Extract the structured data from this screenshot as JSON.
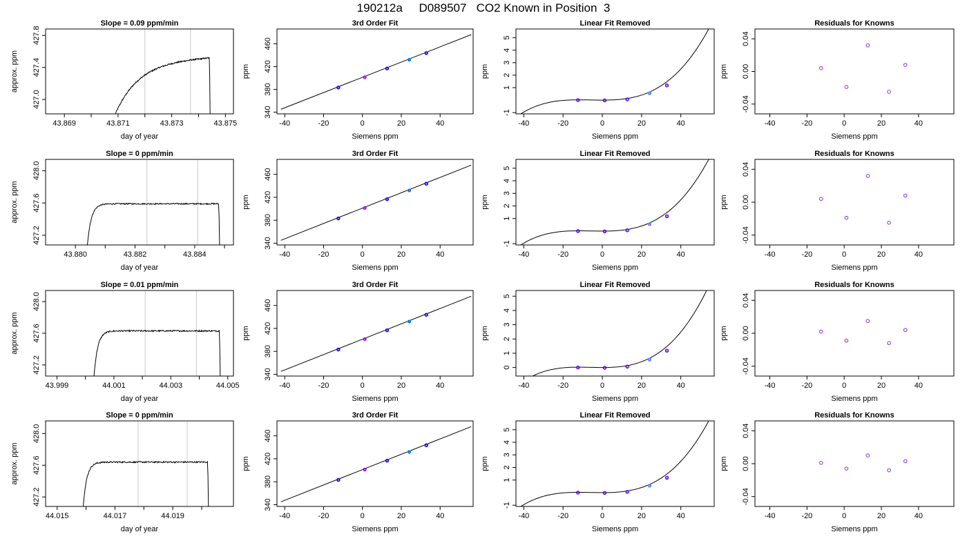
{
  "page": {
    "title": "190212a     D089507   CO2 Known in Position  3"
  },
  "style": {
    "trace_color": "#000000",
    "vline_color": "#c8c8c8",
    "point_color_a": "#0000ff",
    "point_color_b": "#ff00ff",
    "point_color_c": "#00bfff",
    "residual_color": "#8a2be2",
    "axis_color": "#000000"
  },
  "chart_data": [
    {
      "panel": "trace",
      "type": "line",
      "title": "Slope =  0.09  ppm/min",
      "xlabel": "day of year",
      "ylabel": "approx. ppm",
      "xlim": [
        43.8683,
        43.8753
      ],
      "ylim": [
        426.82,
        427.88
      ],
      "xticks": [
        "43.869",
        "43.871",
        "43.873",
        "43.875"
      ],
      "xticks_v": [
        43.869,
        43.871,
        43.873,
        43.875
      ],
      "xticks_minor": [
        43.87,
        43.872,
        43.874
      ],
      "yticks": [
        "427.0",
        "427.4",
        "427.8"
      ],
      "yticks_v": [
        427.0,
        427.4,
        427.8
      ],
      "vlines": [
        43.872,
        43.8737
      ],
      "start": 43.8709,
      "end": 43.8744,
      "base": 426.82,
      "plateau": 427.47,
      "rise_k": 0.55,
      "rise_shape": "slow",
      "plateau_slope": 0.06,
      "noise": 0.008
    },
    {
      "panel": "fit",
      "type": "line",
      "title": "3rd Order Fit",
      "xlabel": "Siemens ppm",
      "ylabel": "ppm",
      "xlim": [
        -44,
        57
      ],
      "ylim": [
        337,
        486
      ],
      "xticks": [
        "-40",
        "-20",
        "0",
        "20",
        "40"
      ],
      "xticks_v": [
        -40,
        -20,
        0,
        20,
        40
      ],
      "yticks": [
        "340",
        "380",
        "420",
        "460"
      ],
      "yticks_v": [
        340,
        380,
        420,
        460
      ],
      "line": [
        [
          -42,
          345
        ],
        [
          56,
          476
        ]
      ],
      "points": [
        [
          -12.4,
          383.2
        ],
        [
          1.2,
          401.3
        ],
        [
          12.7,
          416.7
        ],
        [
          24.1,
          431.9
        ],
        [
          32.9,
          443.7
        ]
      ]
    },
    {
      "panel": "resid_fit",
      "type": "line",
      "title": "Linear Fit Removed",
      "xlabel": "Siemens ppm",
      "ylabel": "ppm",
      "xlim": [
        -44,
        57
      ],
      "ylim": [
        -1.1,
        5.7
      ],
      "xticks": [
        "-40",
        "-20",
        "0",
        "20",
        "40"
      ],
      "xticks_v": [
        -40,
        -20,
        0,
        20,
        40
      ],
      "yticks": [
        "-1",
        "1",
        "2",
        "3",
        "4",
        "5"
      ],
      "yticks_v": [
        -1,
        1,
        2,
        3,
        4,
        5
      ],
      "points": [
        [
          -12.4,
          0.0
        ],
        [
          1.2,
          -0.02
        ],
        [
          12.7,
          0.06
        ],
        [
          24.1,
          0.55
        ],
        [
          32.9,
          1.18
        ]
      ]
    },
    {
      "panel": "knowns",
      "type": "scatter",
      "title": "Residuals for Knowns",
      "xlabel": "Siemens ppm",
      "ylabel": "ppm",
      "xlim": [
        -48,
        59
      ],
      "ylim": [
        -0.052,
        0.052
      ],
      "xticks": [
        "-40",
        "-20",
        "0",
        "20",
        "40"
      ],
      "xticks_v": [
        -40,
        -20,
        0,
        20,
        40
      ],
      "yticks": [
        "-0.04",
        "0.00",
        "0.04"
      ],
      "yticks_v": [
        -0.04,
        0.0,
        0.04
      ],
      "points": [
        [
          -12.4,
          0.004
        ],
        [
          1.2,
          -0.019
        ],
        [
          12.7,
          0.032
        ],
        [
          24.1,
          -0.025
        ],
        [
          32.9,
          0.008
        ]
      ]
    },
    {
      "panel": "trace",
      "type": "line",
      "title": "Slope =  0  ppm/min",
      "xlabel": "day of year",
      "ylabel": "approx. ppm",
      "xlim": [
        43.879,
        43.8853
      ],
      "ylim": [
        427.08,
        428.14
      ],
      "xticks": [
        "43.880",
        "43.882",
        "43.884"
      ],
      "xticks_v": [
        43.88,
        43.882,
        43.884
      ],
      "xticks_minor": [
        43.881,
        43.883,
        43.885
      ],
      "yticks": [
        "427.2",
        "427.6",
        "428.0"
      ],
      "yticks_v": [
        427.2,
        427.6,
        428.0
      ],
      "vlines": [
        43.8824,
        43.8841
      ],
      "start": 43.8804,
      "end": 43.8848,
      "base": 427.08,
      "plateau": 427.59,
      "rise_k": 0.18,
      "rise_shape": "fast",
      "plateau_slope": 0.0,
      "noise": 0.008
    },
    {
      "panel": "fit",
      "type": "line",
      "title": "3rd Order Fit",
      "xlabel": "Siemens ppm",
      "ylabel": "ppm",
      "xlim": [
        -44,
        57
      ],
      "ylim": [
        337,
        486
      ],
      "xticks": [
        "-40",
        "-20",
        "0",
        "20",
        "40"
      ],
      "xticks_v": [
        -40,
        -20,
        0,
        20,
        40
      ],
      "yticks": [
        "340",
        "380",
        "420",
        "460"
      ],
      "yticks_v": [
        340,
        380,
        420,
        460
      ],
      "line": [
        [
          -42,
          345
        ],
        [
          56,
          476
        ]
      ],
      "points": [
        [
          -12.4,
          383.2
        ],
        [
          1.2,
          401.3
        ],
        [
          12.7,
          416.7
        ],
        [
          24.1,
          431.9
        ],
        [
          32.9,
          443.7
        ]
      ]
    },
    {
      "panel": "resid_fit",
      "type": "line",
      "title": "Linear Fit Removed",
      "xlabel": "Siemens ppm",
      "ylabel": "ppm",
      "xlim": [
        -44,
        57
      ],
      "ylim": [
        -1.1,
        5.7
      ],
      "xticks": [
        "-40",
        "-20",
        "0",
        "20",
        "40"
      ],
      "xticks_v": [
        -40,
        -20,
        0,
        20,
        40
      ],
      "yticks": [
        "-1",
        "1",
        "2",
        "3",
        "4",
        "5"
      ],
      "yticks_v": [
        -1,
        1,
        2,
        3,
        4,
        5
      ],
      "points": [
        [
          -12.4,
          0.0
        ],
        [
          1.2,
          -0.02
        ],
        [
          12.7,
          0.06
        ],
        [
          24.1,
          0.55
        ],
        [
          32.9,
          1.18
        ]
      ]
    },
    {
      "panel": "knowns",
      "type": "scatter",
      "title": "Residuals for Knowns",
      "xlabel": "Siemens ppm",
      "ylabel": "ppm",
      "xlim": [
        -48,
        59
      ],
      "ylim": [
        -0.052,
        0.052
      ],
      "xticks": [
        "-40",
        "-20",
        "0",
        "20",
        "40"
      ],
      "xticks_v": [
        -40,
        -20,
        0,
        20,
        40
      ],
      "yticks": [
        "-0.04",
        "0.00",
        "0.04"
      ],
      "yticks_v": [
        -0.04,
        0.0,
        0.04
      ],
      "points": [
        [
          -12.4,
          0.004
        ],
        [
          1.2,
          -0.019
        ],
        [
          12.7,
          0.032
        ],
        [
          24.1,
          -0.025
        ],
        [
          32.9,
          0.008
        ]
      ]
    },
    {
      "panel": "trace",
      "type": "line",
      "title": "Slope =  0.01  ppm/min",
      "xlabel": "day of year",
      "ylabel": "approx. ppm",
      "xlim": [
        43.9986,
        44.0052
      ],
      "ylim": [
        427.06,
        428.14
      ],
      "xticks": [
        "43.999",
        "44.001",
        "44.003",
        "44.005"
      ],
      "xticks_v": [
        43.999,
        44.001,
        44.003,
        44.005
      ],
      "xticks_minor": [
        44.0,
        44.002,
        44.004
      ],
      "yticks": [
        "427.2",
        "427.6",
        "428.0"
      ],
      "yticks_v": [
        427.2,
        427.6,
        428.0
      ],
      "vlines": [
        44.0021,
        44.0039
      ],
      "start": 44.0003,
      "end": 44.0047,
      "base": 427.06,
      "plateau": 427.63,
      "rise_k": 0.18,
      "rise_shape": "fast",
      "plateau_slope": 0.01,
      "noise": 0.009
    },
    {
      "panel": "fit",
      "type": "line",
      "title": "3rd Order Fit",
      "xlabel": "Siemens ppm",
      "ylabel": "ppm",
      "xlim": [
        -44,
        57
      ],
      "ylim": [
        337,
        486
      ],
      "xticks": [
        "-40",
        "-20",
        "0",
        "20",
        "40"
      ],
      "xticks_v": [
        -40,
        -20,
        0,
        20,
        40
      ],
      "yticks": [
        "340",
        "380",
        "420",
        "460"
      ],
      "yticks_v": [
        340,
        380,
        420,
        460
      ],
      "line": [
        [
          -42,
          345
        ],
        [
          56,
          476
        ]
      ],
      "points": [
        [
          -12.4,
          383.2
        ],
        [
          1.2,
          401.3
        ],
        [
          12.7,
          416.7
        ],
        [
          24.1,
          431.9
        ],
        [
          32.9,
          443.7
        ]
      ]
    },
    {
      "panel": "resid_fit",
      "type": "line",
      "title": "Linear Fit Removed",
      "xlabel": "Siemens ppm",
      "ylabel": "ppm",
      "xlim": [
        -44,
        57
      ],
      "ylim": [
        -0.6,
        5.4
      ],
      "xticks": [
        "-40",
        "-20",
        "0",
        "20",
        "40"
      ],
      "xticks_v": [
        -40,
        -20,
        0,
        20,
        40
      ],
      "yticks": [
        "0",
        "1",
        "2",
        "3",
        "4",
        "5"
      ],
      "yticks_v": [
        0,
        1,
        2,
        3,
        4,
        5
      ],
      "points": [
        [
          -12.4,
          0.0
        ],
        [
          1.2,
          -0.02
        ],
        [
          12.7,
          0.06
        ],
        [
          24.1,
          0.55
        ],
        [
          32.9,
          1.18
        ]
      ]
    },
    {
      "panel": "knowns",
      "type": "scatter",
      "title": "Residuals for Knowns",
      "xlabel": "Siemens ppm",
      "ylabel": "ppm",
      "xlim": [
        -48,
        59
      ],
      "ylim": [
        -0.052,
        0.052
      ],
      "xticks": [
        "-40",
        "-20",
        "0",
        "20",
        "40"
      ],
      "xticks_v": [
        -40,
        -20,
        0,
        20,
        40
      ],
      "yticks": [
        "-0.04",
        "0.00",
        "0.04"
      ],
      "yticks_v": [
        -0.04,
        0.0,
        0.04
      ],
      "points": [
        [
          -12.4,
          0.002
        ],
        [
          1.2,
          -0.009
        ],
        [
          12.7,
          0.015
        ],
        [
          24.1,
          -0.012
        ],
        [
          32.9,
          0.004
        ]
      ]
    },
    {
      "panel": "trace",
      "type": "line",
      "title": "Slope =  0  ppm/min",
      "xlabel": "day of year",
      "ylabel": "approx. ppm",
      "xlim": [
        44.0146,
        44.0211
      ],
      "ylim": [
        427.08,
        428.16
      ],
      "xticks": [
        "44.015",
        "44.017",
        "44.019"
      ],
      "xticks_v": [
        44.015,
        44.017,
        44.019
      ],
      "xticks_minor": [
        44.016,
        44.018,
        44.02
      ],
      "yticks": [
        "427.2",
        "427.6",
        "428.0"
      ],
      "yticks_v": [
        427.2,
        427.6,
        428.0
      ],
      "vlines": [
        44.0178,
        44.0195
      ],
      "start": 44.0159,
      "end": 44.0202,
      "base": 427.08,
      "plateau": 427.64,
      "rise_k": 0.18,
      "rise_shape": "fast",
      "plateau_slope": 0.0,
      "noise": 0.009
    },
    {
      "panel": "fit",
      "type": "line",
      "title": "3rd Order Fit",
      "xlabel": "Siemens ppm",
      "ylabel": "ppm",
      "xlim": [
        -44,
        57
      ],
      "ylim": [
        337,
        486
      ],
      "xticks": [
        "-40",
        "-20",
        "0",
        "20",
        "40"
      ],
      "xticks_v": [
        -40,
        -20,
        0,
        20,
        40
      ],
      "yticks": [
        "340",
        "380",
        "420",
        "460"
      ],
      "yticks_v": [
        340,
        380,
        420,
        460
      ],
      "line": [
        [
          -42,
          345
        ],
        [
          56,
          476
        ]
      ],
      "points": [
        [
          -12.4,
          383.2
        ],
        [
          1.2,
          401.3
        ],
        [
          12.7,
          416.7
        ],
        [
          24.1,
          431.9
        ],
        [
          32.9,
          443.7
        ]
      ]
    },
    {
      "panel": "resid_fit",
      "type": "line",
      "title": "Linear Fit Removed",
      "xlabel": "Siemens ppm",
      "ylabel": "ppm",
      "xlim": [
        -44,
        57
      ],
      "ylim": [
        -1.1,
        5.7
      ],
      "xticks": [
        "-40",
        "-20",
        "0",
        "20",
        "40"
      ],
      "xticks_v": [
        -40,
        -20,
        0,
        20,
        40
      ],
      "yticks": [
        "-1",
        "1",
        "2",
        "3",
        "4",
        "5"
      ],
      "yticks_v": [
        -1,
        1,
        2,
        3,
        4,
        5
      ],
      "points": [
        [
          -12.4,
          0.0
        ],
        [
          1.2,
          -0.02
        ],
        [
          12.7,
          0.06
        ],
        [
          24.1,
          0.55
        ],
        [
          32.9,
          1.18
        ]
      ]
    },
    {
      "panel": "knowns",
      "type": "scatter",
      "title": "Residuals for Knowns",
      "xlabel": "Siemens ppm",
      "ylabel": "ppm",
      "xlim": [
        -48,
        59
      ],
      "ylim": [
        -0.052,
        0.052
      ],
      "xticks": [
        "-40",
        "-20",
        "0",
        "20",
        "40"
      ],
      "xticks_v": [
        -40,
        -20,
        0,
        20,
        40
      ],
      "yticks": [
        "-0.04",
        "0.00",
        "0.04"
      ],
      "yticks_v": [
        -0.04,
        0.0,
        0.04
      ],
      "points": [
        [
          -12.4,
          0.001
        ],
        [
          1.2,
          -0.006
        ],
        [
          12.7,
          0.01
        ],
        [
          24.1,
          -0.008
        ],
        [
          32.9,
          0.003
        ]
      ]
    }
  ]
}
